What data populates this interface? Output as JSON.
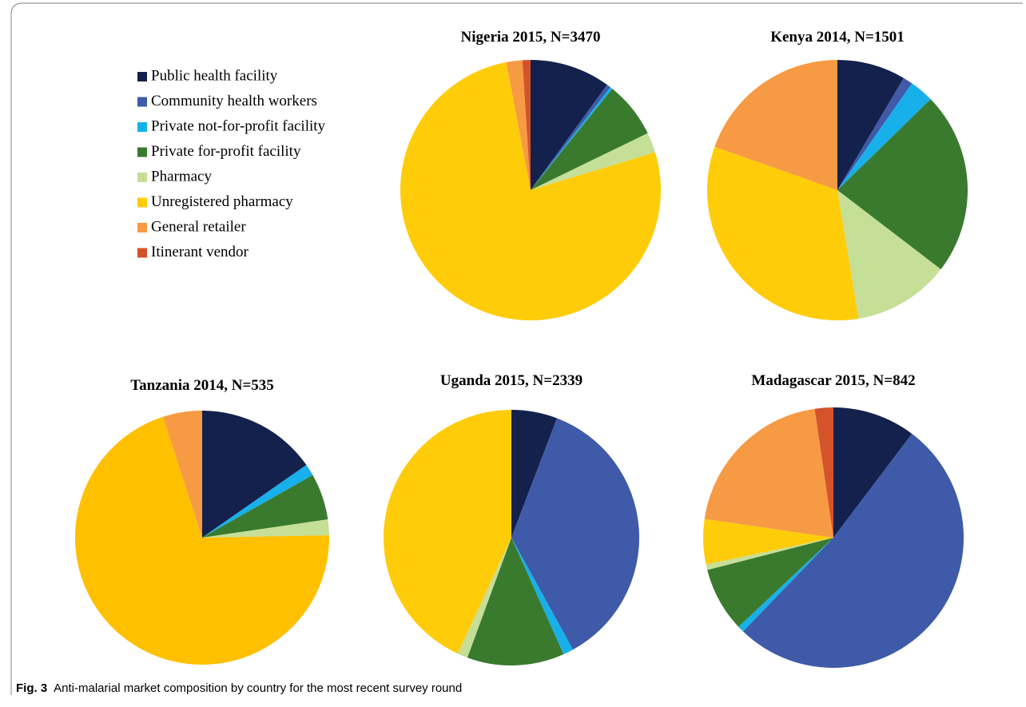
{
  "chart_data": [
    {
      "type": "pie",
      "title": "Nigeria 2015, N=3470",
      "categories": [
        "Public health facility",
        "Community health workers",
        "Private not-for-profit facility",
        "Private for-profit facility",
        "Pharmacy",
        "Unregistered pharmacy",
        "General retailer",
        "Itinerant vendor"
      ],
      "values": [
        10,
        0.5,
        0.3,
        7,
        2.5,
        76.7,
        2,
        1
      ],
      "colors": [
        "#14214d",
        "#3e5aa8",
        "#17b0ea",
        "#3a7a2e",
        "#c5df97",
        "#ffcc0a",
        "#f79a44",
        "#d5532a"
      ]
    },
    {
      "type": "pie",
      "title": "Kenya 2014, N=1501",
      "categories": [
        "Public health facility",
        "Community health workers",
        "Private not-for-profit facility",
        "Private for-profit facility",
        "Pharmacy",
        "Unregistered pharmacy",
        "General retailer",
        "Itinerant vendor"
      ],
      "values": [
        8.5,
        1.2,
        3,
        22.7,
        12,
        33,
        19.6,
        0
      ],
      "colors": [
        "#14214d",
        "#3e5aa8",
        "#17b0ea",
        "#3a7a2e",
        "#c5df97",
        "#ffcc0a",
        "#f79a44",
        "#d5532a"
      ]
    },
    {
      "type": "pie",
      "title": "Tanzania 2014, N=535",
      "categories": [
        "Public health facility",
        "Community health workers",
        "Private not-for-profit facility",
        "Private for-profit facility",
        "Pharmacy",
        "Unregistered pharmacy",
        "General retailer",
        "Itinerant vendor"
      ],
      "values": [
        15.3,
        0,
        1.5,
        5.9,
        2,
        70.3,
        5,
        0
      ],
      "colors": [
        "#14214d",
        "#3e5aa8",
        "#17b0ea",
        "#3a7a2e",
        "#c5df97",
        "#ffc000",
        "#f79a44",
        "#d5532a"
      ]
    },
    {
      "type": "pie",
      "title": "Uganda 2015, N=2339",
      "categories": [
        "Public health facility",
        "Community health workers",
        "Private not-for-profit facility",
        "Private for-profit facility",
        "Pharmacy",
        "Unregistered pharmacy",
        "General retailer",
        "Itinerant vendor"
      ],
      "values": [
        5.8,
        36.2,
        1.3,
        12.3,
        1.3,
        43.1,
        0,
        0
      ],
      "colors": [
        "#14214d",
        "#3e5aa8",
        "#17b0ea",
        "#3a7a2e",
        "#c5df97",
        "#ffcc0a",
        "#f79a44",
        "#d5532a"
      ]
    },
    {
      "type": "pie",
      "title": "Madagascar 2015, N=842",
      "categories": [
        "Public health facility",
        "Community health workers",
        "Private not-for-profit facility",
        "Private for-profit facility",
        "Pharmacy",
        "Unregistered pharmacy",
        "General retailer",
        "Itinerant vendor"
      ],
      "values": [
        10.3,
        51.9,
        0.8,
        8,
        0.7,
        5.6,
        20.4,
        2.3
      ],
      "colors": [
        "#14214d",
        "#3e5aa8",
        "#17b0ea",
        "#3a7a2e",
        "#c5df97",
        "#ffcc0a",
        "#f79a44",
        "#d5532a"
      ]
    }
  ],
  "caption": {
    "label": "Fig. 3",
    "text": "Anti-malarial market composition by country for the most recent survey round"
  }
}
